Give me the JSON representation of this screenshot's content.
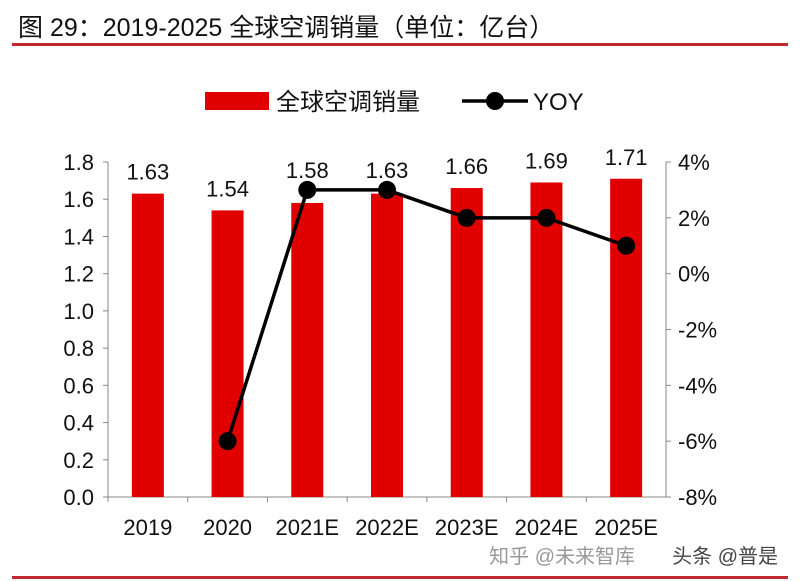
{
  "title": "图 29：2019-2025 全球空调销量（单位：亿台）",
  "watermark": "知乎 @未来智库",
  "watermark2": "头条 @普是",
  "chart_data": {
    "type": "bar+line",
    "categories": [
      "2019",
      "2020",
      "2021E",
      "2022E",
      "2023E",
      "2024E",
      "2025E"
    ],
    "series": [
      {
        "name": "全球空调销量",
        "type": "bar",
        "axis": "left",
        "color": "#e00000",
        "values": [
          1.63,
          1.54,
          1.58,
          1.63,
          1.66,
          1.69,
          1.71
        ],
        "labels": [
          "1.63",
          "1.54",
          "1.58",
          "1.63",
          "1.66",
          "1.69",
          "1.71"
        ]
      },
      {
        "name": "YOY",
        "type": "line",
        "axis": "right",
        "color": "#000000",
        "values": [
          null,
          -6,
          3,
          3,
          2,
          2,
          1
        ]
      }
    ],
    "left_axis": {
      "ylim": [
        0,
        1.8
      ],
      "ticks": [
        "0.0",
        "0.2",
        "0.4",
        "0.6",
        "0.8",
        "1.0",
        "1.2",
        "1.4",
        "1.6",
        "1.8"
      ]
    },
    "right_axis": {
      "ylim": [
        -8,
        4
      ],
      "ticks": [
        "-8%",
        "-6%",
        "-4%",
        "-2%",
        "0%",
        "2%",
        "4%"
      ]
    },
    "legend_position": "top-center",
    "grid": false
  }
}
